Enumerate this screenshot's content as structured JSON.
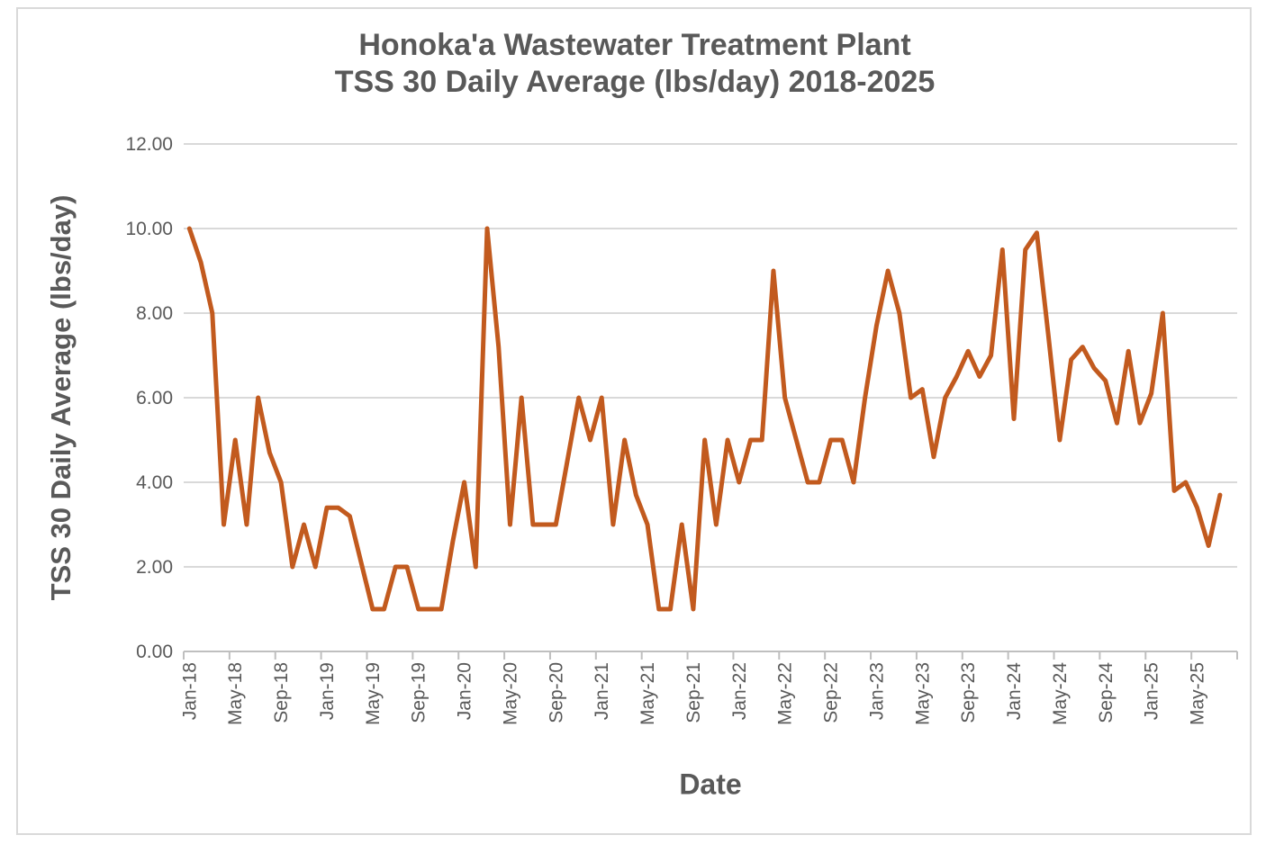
{
  "chart": {
    "title_line1": "Honoka'a Wastewater Treatment Plant",
    "title_line2": "TSS 30 Daily Average (lbs/day) 2018-2025",
    "x_axis_title": "Date",
    "y_axis_title": "TSS 30 Daily Average (lbs/day)"
  },
  "chart_data": {
    "type": "line",
    "title": "Honoka'a Wastewater Treatment Plant TSS 30 Daily Average (lbs/day) 2018-2025",
    "xlabel": "Date",
    "ylabel": "TSS 30 Daily Average (lbs/day)",
    "ylim": [
      0,
      12
    ],
    "y_tick_step": 2,
    "y_tick_labels": [
      "0.00",
      "2.00",
      "4.00",
      "6.00",
      "8.00",
      "10.00",
      "12.00"
    ],
    "x_tick_labels": [
      "Jan-18",
      "May-18",
      "Sep-18",
      "Jan-19",
      "May-19",
      "Sep-19",
      "Jan-20",
      "May-20",
      "Sep-20",
      "Jan-21",
      "May-21",
      "Sep-21",
      "Jan-22",
      "May-22",
      "Sep-22",
      "Jan-23",
      "May-23",
      "Sep-23",
      "Jan-24",
      "May-24",
      "Sep-24",
      "Jan-25",
      "May-25"
    ],
    "x_tick_interval_months": 4,
    "frequency": "monthly",
    "x_start": "Jan-18",
    "x_end": "Jul-25",
    "grid": "horizontal",
    "legend": false,
    "line_color": "#c25a1e",
    "gridline_color": "#d9d9d9",
    "axis_color": "#bfbfbf",
    "text_color": "#595959",
    "values": [
      10.0,
      9.2,
      8.0,
      3.0,
      5.0,
      3.0,
      6.0,
      4.7,
      4.0,
      2.0,
      3.0,
      2.0,
      3.4,
      3.4,
      3.2,
      2.1,
      1.0,
      1.0,
      2.0,
      2.0,
      1.0,
      1.0,
      1.0,
      2.6,
      4.0,
      2.0,
      10.0,
      7.2,
      3.0,
      6.0,
      3.0,
      3.0,
      3.0,
      4.5,
      6.0,
      5.0,
      6.0,
      3.0,
      5.0,
      3.7,
      3.0,
      1.0,
      1.0,
      3.0,
      1.0,
      5.0,
      3.0,
      5.0,
      4.0,
      5.0,
      5.0,
      9.0,
      6.0,
      5.0,
      4.0,
      4.0,
      5.0,
      5.0,
      4.0,
      6.0,
      7.7,
      9.0,
      8.0,
      6.0,
      6.2,
      4.6,
      6.0,
      6.5,
      7.1,
      6.5,
      7.0,
      9.5,
      5.5,
      9.5,
      9.9,
      7.5,
      5.0,
      6.9,
      7.2,
      6.7,
      6.4,
      5.4,
      7.1,
      5.4,
      6.1,
      8.0,
      3.8,
      4.0,
      3.4,
      2.5,
      3.7
    ]
  }
}
